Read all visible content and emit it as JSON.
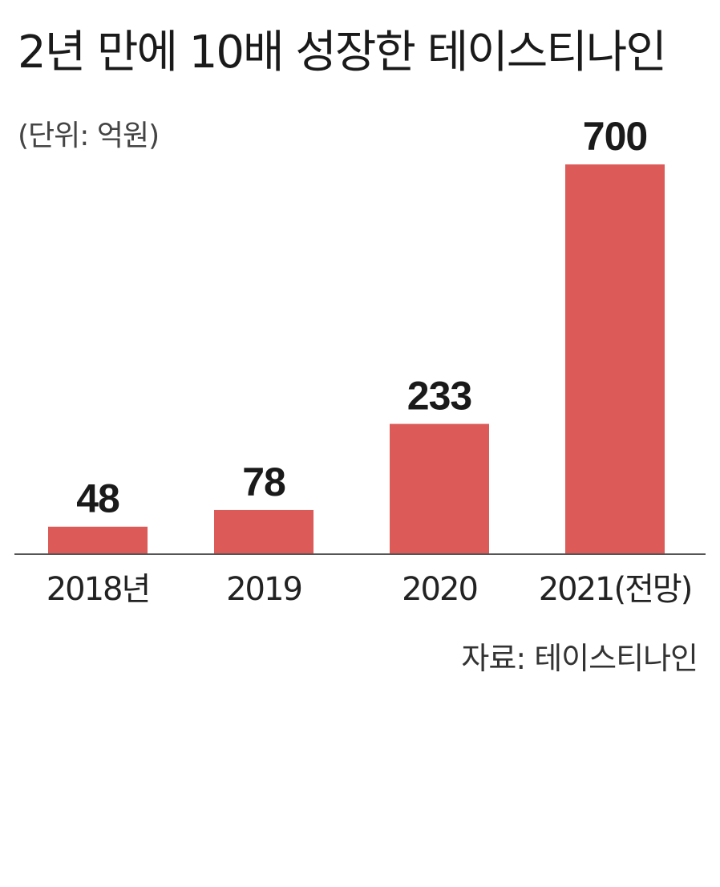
{
  "chart_data": {
    "type": "bar",
    "title": "2년 만에 10배 성장한 테이스티나인",
    "unit": "(단위: 억원)",
    "categories": [
      "2018년",
      "2019",
      "2020",
      "2021(전망)"
    ],
    "values": [
      48,
      78,
      233,
      700
    ],
    "value_labels": [
      "48",
      "78",
      "233",
      "700"
    ],
    "ylim": [
      0,
      700
    ],
    "grid": false,
    "legend": "none",
    "source": "자료: 테이스티나인",
    "bar_color": "#dc5a57",
    "axis_color": "#555555"
  }
}
